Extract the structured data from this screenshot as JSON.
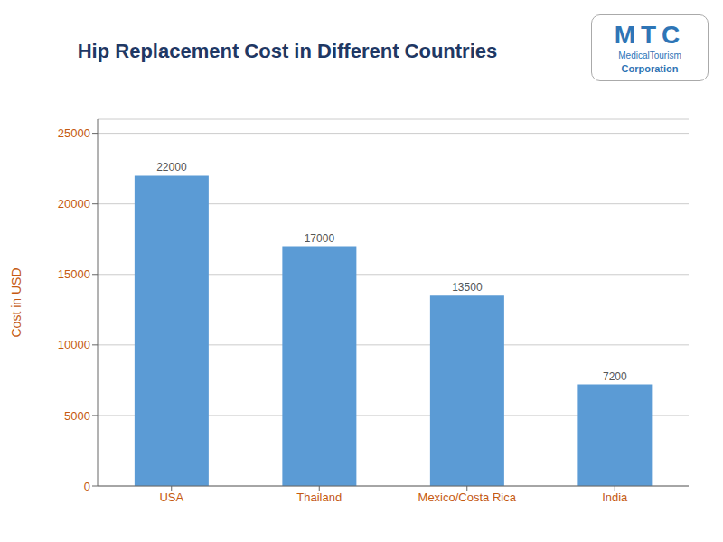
{
  "chart_data": {
    "type": "bar",
    "title": "Hip Replacement Cost in Different Countries",
    "categories": [
      "USA",
      "Thailand",
      "Mexico/Costa Rica",
      "India"
    ],
    "values": [
      22000,
      17000,
      13500,
      7200
    ],
    "color": "#5b9bd5",
    "ylabel": "Cost in USD",
    "ylim": [
      0,
      26000
    ],
    "yticks": [
      0,
      5000,
      10000,
      15000,
      20000,
      25000
    ],
    "grid": true,
    "data_labels": true,
    "annotations": [
      {
        "text": "MTC",
        "color": "#2e75b6"
      },
      {
        "text": "MedicalTourism",
        "color": "#2e75b6"
      },
      {
        "text": "Corporation",
        "color": "#2e75b6"
      }
    ]
  }
}
